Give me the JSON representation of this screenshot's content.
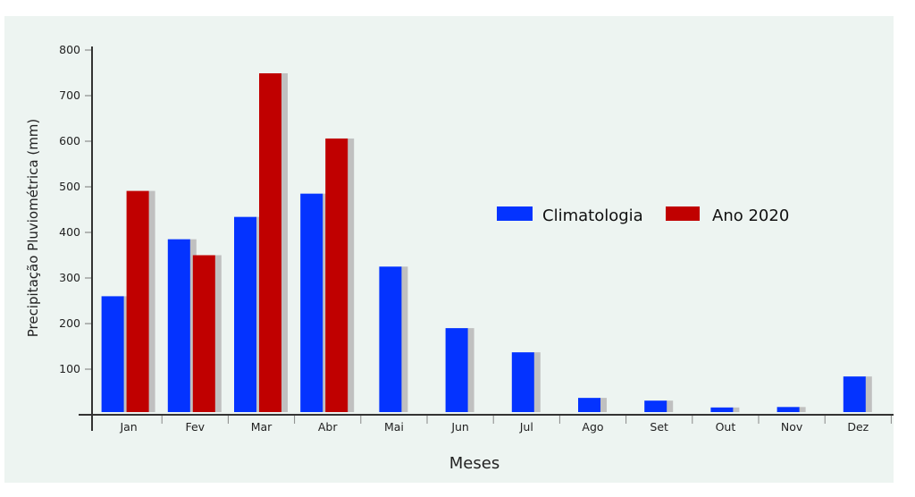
{
  "chart_data": {
    "type": "bar",
    "title": "",
    "xlabel": "Meses",
    "ylabel": "Precipitação Pluviométrica (mm)",
    "ylim": [
      0,
      800
    ],
    "yticks": [
      100,
      200,
      300,
      400,
      500,
      600,
      700,
      800
    ],
    "categories": [
      "Jan",
      "Fev",
      "Mar",
      "Abr",
      "Mai",
      "Jun",
      "Jul",
      "Ago",
      "Set",
      "Out",
      "Nov",
      "Dez"
    ],
    "series": [
      {
        "name": "Climatologia",
        "color": "#0433ff",
        "values": [
          260,
          385,
          434,
          485,
          325,
          190,
          137,
          37,
          31,
          16,
          17,
          84
        ]
      },
      {
        "name": "Ano 2020",
        "color": "#c00000",
        "values": [
          491,
          350,
          749,
          606,
          null,
          null,
          null,
          null,
          null,
          null,
          null,
          null
        ]
      }
    ],
    "legend_position": "right-middle",
    "grid": false
  }
}
